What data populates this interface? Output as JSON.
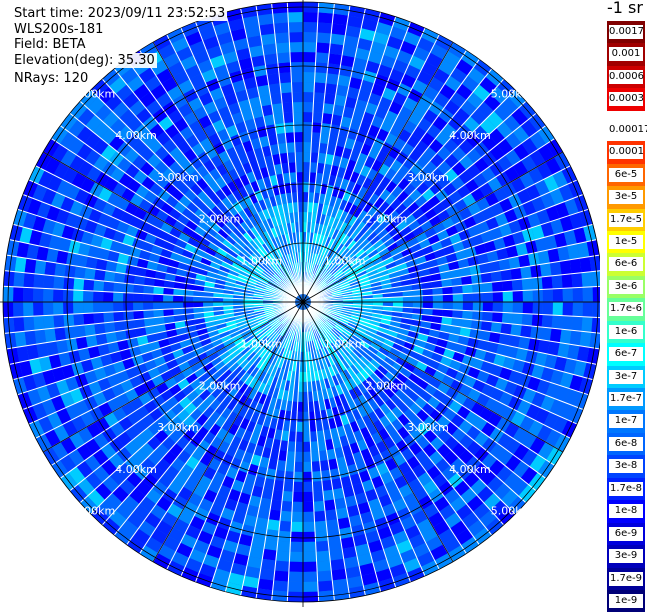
{
  "header": {
    "start_time": "Start time: 2023/09/11 23:52:53",
    "instrument": "WLS200s-181",
    "field": "Field: BETA",
    "elevation": "Elevation(deg): 35.30",
    "nrays": "NRays: 120"
  },
  "ppi": {
    "nrays": 120,
    "range_ring_labels": [
      "1.00km",
      "2.00km",
      "3.00km",
      "4.00km",
      "5.00km"
    ]
  },
  "colorbar": {
    "title": "-1 sr",
    "levels": [
      {
        "label": "0.0017",
        "color": "#800000"
      },
      {
        "label": "0.001",
        "color": "#a00000"
      },
      {
        "label": "0.0006",
        "color": "#cc0000"
      },
      {
        "label": "0.0003",
        "color": "#ee0000"
      },
      {
        "label": "0.00017",
        "color": "#ffffff"
      },
      {
        "label": "0.0001",
        "color": "#ff3300"
      },
      {
        "label": "6e-5",
        "color": "#ff6600"
      },
      {
        "label": "3e-5",
        "color": "#ff9900"
      },
      {
        "label": "1.7e-5",
        "color": "#ffcc00"
      },
      {
        "label": "1e-5",
        "color": "#ffff00"
      },
      {
        "label": "6e-6",
        "color": "#ccff33"
      },
      {
        "label": "3e-6",
        "color": "#99ff66"
      },
      {
        "label": "1.7e-6",
        "color": "#66ff99"
      },
      {
        "label": "1e-6",
        "color": "#33ffcc"
      },
      {
        "label": "6e-7",
        "color": "#00ffff"
      },
      {
        "label": "3e-7",
        "color": "#00ccff"
      },
      {
        "label": "1.7e-7",
        "color": "#0099ff"
      },
      {
        "label": "1e-7",
        "color": "#0077ff"
      },
      {
        "label": "6e-8",
        "color": "#0066ff"
      },
      {
        "label": "3e-8",
        "color": "#0044ff"
      },
      {
        "label": "1.7e-8",
        "color": "#0022ff"
      },
      {
        "label": "1e-8",
        "color": "#0000ff"
      },
      {
        "label": "6e-9",
        "color": "#0000dd"
      },
      {
        "label": "3e-9",
        "color": "#0000bb"
      },
      {
        "label": "1.7e-9",
        "color": "#000099"
      },
      {
        "label": "1e-9",
        "color": "#000077"
      }
    ]
  }
}
